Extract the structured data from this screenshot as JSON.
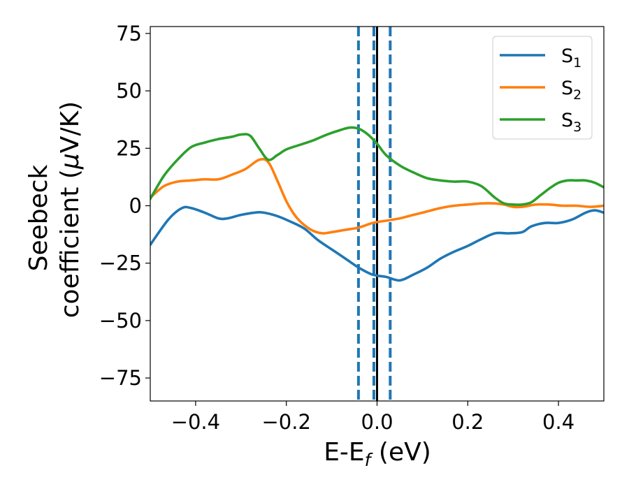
{
  "chart_data": {
    "type": "line",
    "xlabel": {
      "main": "E-E",
      "sub": "f",
      "unit": " (eV)"
    },
    "ylabel": {
      "line1": "Seebeck",
      "line2_prefix": "coefficient  (",
      "mu": "μ",
      "line2_suffix": "V/K)"
    },
    "xlim": [
      -0.5,
      0.5
    ],
    "ylim": [
      -85,
      78
    ],
    "xticks": [
      -0.4,
      -0.2,
      0.0,
      0.2,
      0.4
    ],
    "xtick_labels": [
      "−0.4",
      "−0.2",
      "0.0",
      "0.2",
      "0.4"
    ],
    "yticks": [
      -75,
      -50,
      -25,
      0,
      25,
      50,
      75
    ],
    "ytick_labels": [
      "−75",
      "−50",
      "−25",
      "0",
      "25",
      "50",
      "75"
    ],
    "grid": false,
    "legend_position": "top-right",
    "vlines": [
      {
        "x": -0.041,
        "style": "dashed",
        "color": "#1f77b4"
      },
      {
        "x": -0.007,
        "style": "dashed",
        "color": "#1f77b4"
      },
      {
        "x": 0.029,
        "style": "dashed",
        "color": "#1f77b4"
      },
      {
        "x": 0.0,
        "style": "solid",
        "color": "#000000"
      }
    ],
    "series": [
      {
        "name": "S",
        "sub": "1",
        "color": "#1f77b4",
        "x": [
          -0.5,
          -0.46,
          -0.43,
          -0.41,
          -0.38,
          -0.35,
          -0.33,
          -0.3,
          -0.27,
          -0.25,
          -0.22,
          -0.19,
          -0.16,
          -0.13,
          -0.1,
          -0.07,
          -0.04,
          -0.01,
          0.02,
          0.05,
          0.08,
          0.11,
          0.14,
          0.17,
          0.2,
          0.23,
          0.26,
          0.29,
          0.32,
          0.34,
          0.37,
          0.4,
          0.43,
          0.46,
          0.48,
          0.5
        ],
        "y": [
          -17,
          -6,
          -1,
          -1,
          -3,
          -5.5,
          -5.5,
          -4,
          -3,
          -3,
          -4.5,
          -7,
          -10,
          -15,
          -19,
          -23,
          -27,
          -30,
          -31,
          -32.5,
          -30,
          -27,
          -23,
          -20,
          -17.5,
          -14.5,
          -12,
          -12,
          -11.5,
          -9,
          -7.5,
          -7.5,
          -6,
          -3,
          -2,
          -3
        ]
      },
      {
        "name": "S",
        "sub": "2",
        "color": "#ff7f0e",
        "x": [
          -0.5,
          -0.47,
          -0.44,
          -0.41,
          -0.38,
          -0.35,
          -0.32,
          -0.29,
          -0.26,
          -0.24,
          -0.22,
          -0.2,
          -0.18,
          -0.16,
          -0.14,
          -0.12,
          -0.1,
          -0.07,
          -0.04,
          -0.01,
          0.02,
          0.05,
          0.08,
          0.11,
          0.14,
          0.17,
          0.2,
          0.23,
          0.26,
          0.28,
          0.3,
          0.32,
          0.35,
          0.38,
          0.41,
          0.44,
          0.47,
          0.5
        ],
        "y": [
          3.5,
          8.5,
          10.5,
          11,
          11.5,
          11.5,
          13.5,
          16,
          20,
          19,
          11,
          2,
          -4.5,
          -8.5,
          -11,
          -12,
          -11.5,
          -10.5,
          -9.5,
          -7.5,
          -6.5,
          -5.5,
          -4,
          -2.5,
          -1,
          0,
          0.5,
          1,
          1,
          0.5,
          -0.5,
          -0.5,
          0.5,
          0.5,
          0,
          0,
          -0.5,
          0
        ]
      },
      {
        "name": "S",
        "sub": "3",
        "color": "#2ca02c",
        "x": [
          -0.5,
          -0.47,
          -0.44,
          -0.41,
          -0.38,
          -0.35,
          -0.32,
          -0.3,
          -0.28,
          -0.26,
          -0.24,
          -0.22,
          -0.2,
          -0.17,
          -0.14,
          -0.11,
          -0.08,
          -0.06,
          -0.04,
          -0.02,
          0.0,
          0.02,
          0.05,
          0.08,
          0.11,
          0.14,
          0.17,
          0.2,
          0.23,
          0.26,
          0.28,
          0.3,
          0.32,
          0.34,
          0.36,
          0.38,
          0.4,
          0.42,
          0.44,
          0.46,
          0.48,
          0.5
        ],
        "y": [
          3,
          13,
          20,
          25.5,
          27.5,
          29,
          30,
          31,
          30.5,
          25,
          20,
          22,
          24.5,
          26.5,
          28.5,
          31,
          33,
          34,
          33.5,
          31,
          27,
          22,
          17.5,
          14.5,
          12,
          11,
          10.5,
          10.5,
          8.5,
          3.5,
          1,
          0.5,
          0.5,
          1.5,
          4.5,
          7.5,
          10,
          11,
          11,
          11,
          10,
          8
        ]
      }
    ]
  }
}
